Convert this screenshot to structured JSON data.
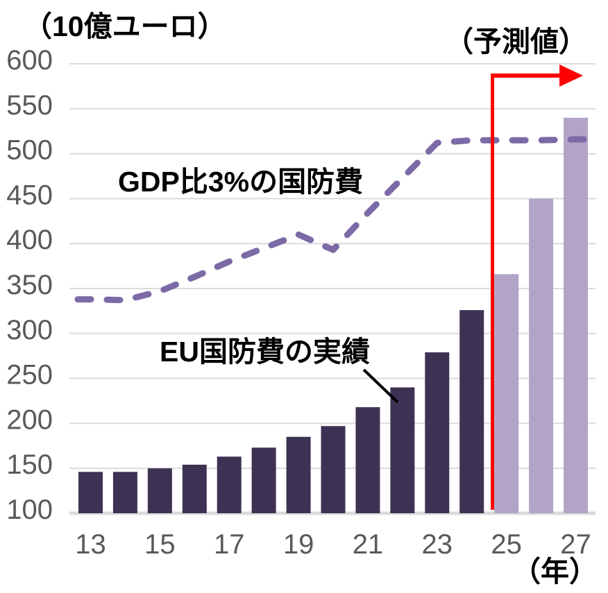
{
  "colors": {
    "bar_actual": "#3E3254",
    "bar_forecast": "#B1A4C7",
    "line": "#7C6AA6",
    "forecast_marker": "#FF0000",
    "tick_text": "#595959",
    "grid": "#DBDBDB",
    "label_text": "#000000",
    "annotation_pointer": "#000000",
    "background": "#FFFFFF"
  },
  "chart_data": {
    "type": "bar+line",
    "x": [
      13,
      14,
      15,
      16,
      17,
      18,
      19,
      20,
      21,
      22,
      23,
      24,
      25,
      26,
      27
    ],
    "series": [
      {
        "name": "EU国防費の実績",
        "type": "bar",
        "values": [
          146,
          146,
          150,
          154,
          163,
          173,
          185,
          197,
          218,
          240,
          279,
          326,
          366,
          450,
          540
        ],
        "forecast_from": 25
      },
      {
        "name": "GDP比3%の国防費",
        "type": "line",
        "dashed": true,
        "values": [
          338,
          337,
          347,
          363,
          380,
          395,
          410,
          393,
          434,
          473,
          512,
          515,
          515,
          515,
          516
        ]
      }
    ],
    "xticks": [
      13,
      15,
      17,
      19,
      21,
      23,
      25,
      27
    ],
    "yticks": [
      100,
      150,
      200,
      250,
      300,
      350,
      400,
      450,
      500,
      550,
      600
    ],
    "ylim": [
      100,
      600
    ],
    "ylabel": "（10億ユーロ）",
    "xlabel": "（年）",
    "forecast_label": "（予測値）",
    "forecast_boundary_year": 24.6,
    "grid": true,
    "legend_position": "none"
  }
}
